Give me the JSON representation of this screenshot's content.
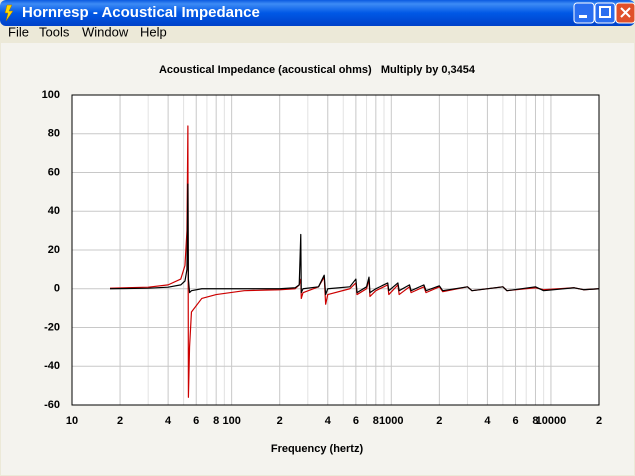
{
  "window": {
    "title": "Hornresp - Acoustical Impedance",
    "menu": [
      "File",
      "Tools",
      "Window",
      "Help"
    ]
  },
  "chart_data": {
    "type": "line",
    "title": "Acoustical Impedance (acoustical ohms)   Multiply by 0,3454",
    "x_label": "Frequency (hertz)",
    "x_scale": "log",
    "xlim": [
      10,
      20000
    ],
    "xticks": [
      10,
      {
        "value": 20,
        "label": "2"
      },
      {
        "value": 40,
        "label": "4"
      },
      {
        "value": 60,
        "label": "6"
      },
      {
        "value": 80,
        "label": "8"
      },
      100,
      {
        "value": 200,
        "label": "2"
      },
      {
        "value": 400,
        "label": "4"
      },
      {
        "value": 600,
        "label": "6"
      },
      {
        "value": 800,
        "label": "8"
      },
      1000,
      {
        "value": 2000,
        "label": "2"
      },
      {
        "value": 4000,
        "label": "4"
      },
      {
        "value": 6000,
        "label": "6"
      },
      {
        "value": 8000,
        "label": "8"
      },
      10000,
      {
        "value": 20000,
        "label": "2"
      }
    ],
    "xminor_ticks": [
      30,
      50,
      70,
      90,
      300,
      500,
      700,
      900,
      3000,
      5000,
      7000,
      9000
    ],
    "ylim": [
      -60,
      100
    ],
    "yticks": [
      -60,
      -40,
      -20,
      0,
      20,
      40,
      60,
      80,
      100
    ],
    "grid": true,
    "x": [
      17.3,
      30,
      40,
      48,
      51,
      52.5,
      53.2,
      53.6,
      54.5,
      56,
      65,
      80,
      120,
      200,
      250,
      265,
      271,
      273,
      280,
      350,
      380,
      388,
      400,
      550,
      600,
      610,
      700,
      725,
      735,
      800,
      950,
      965,
      1100,
      1120,
      1300,
      1330,
      1600,
      1650,
      2000,
      2100,
      3000,
      3200,
      5000,
      5300,
      8000,
      9000,
      14000,
      16000,
      20000
    ],
    "series": [
      {
        "color": "#cc0000",
        "values": [
          0.3,
          0.8,
          2,
          5,
          12,
          30,
          84,
          -56,
          -30,
          -12,
          -5,
          -3,
          -1,
          -0.5,
          0,
          2,
          5,
          -5,
          -2,
          1,
          6,
          -8,
          -3,
          0,
          3,
          -3,
          0,
          5,
          -4,
          -1,
          2,
          -3,
          2,
          -3,
          1,
          -2,
          1,
          -2,
          1,
          -1.5,
          1,
          -1,
          1,
          -1,
          0.5,
          -0.5,
          0.5,
          -0.5,
          0
        ]
      },
      {
        "color": "#000000",
        "values": [
          0,
          0.3,
          0.8,
          2,
          4,
          10,
          54,
          5,
          -2,
          -1,
          0,
          0,
          0,
          0,
          0.5,
          2,
          28,
          -2,
          0,
          1,
          7,
          -3,
          0,
          1,
          5,
          -2,
          1,
          6,
          -2,
          0,
          3,
          -1,
          3,
          -1,
          2,
          -1,
          2,
          -1,
          1.5,
          -1,
          1,
          -1,
          1,
          -1,
          1,
          -1,
          0.5,
          -0.5,
          0
        ]
      }
    ]
  }
}
